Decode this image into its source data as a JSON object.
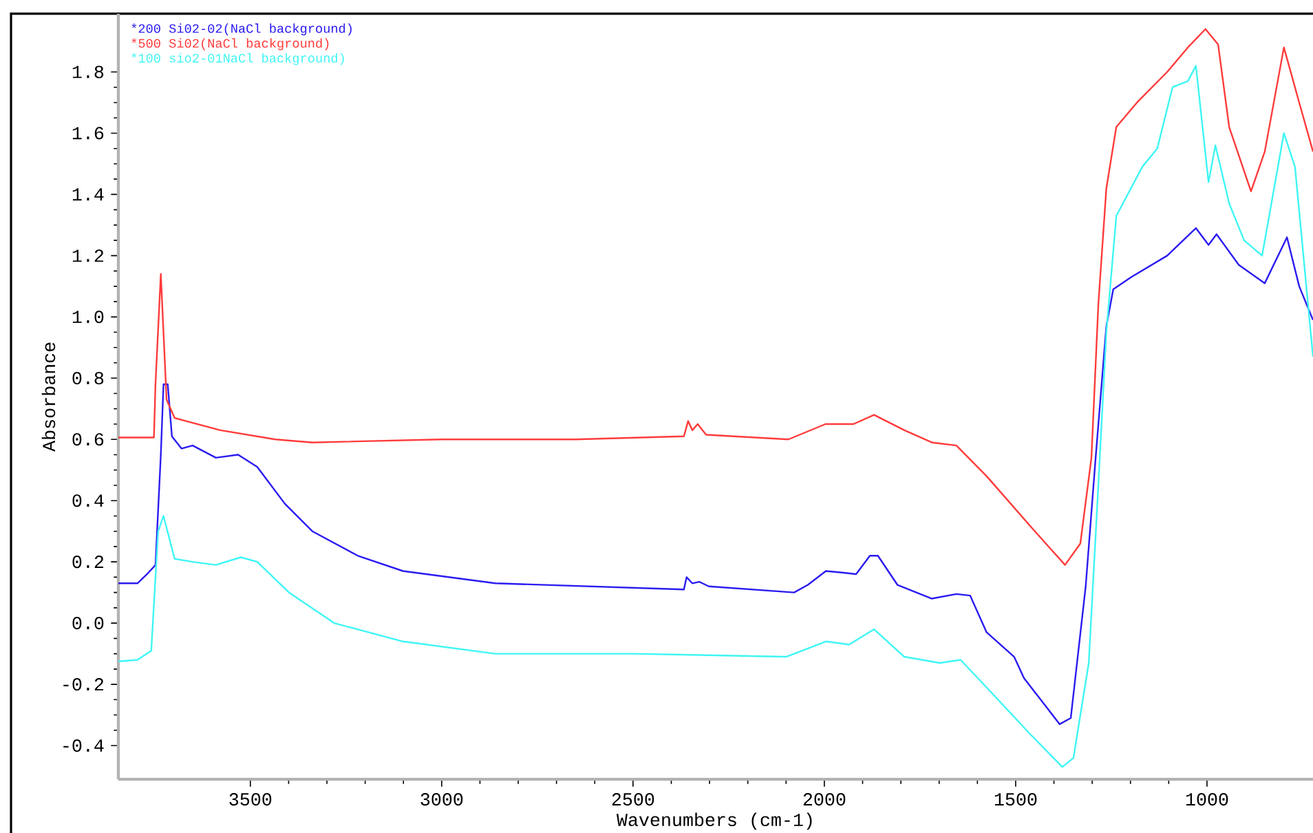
{
  "chart_data": {
    "type": "line",
    "xlabel": "Wavenumbers (cm-1)",
    "ylabel": "Absorbance",
    "xlim": [
      3845,
      723
    ],
    "ylim": [
      -0.51,
      1.99
    ],
    "xticks": [
      3500,
      3000,
      2500,
      2000,
      1500,
      1000
    ],
    "yticks": [
      -0.4,
      -0.2,
      {
        "value": 0,
        "label": "0.0"
      },
      0.2,
      0.4,
      0.6,
      0.8,
      {
        "value": 1,
        "label": "1.0"
      },
      1.2,
      1.4,
      1.6,
      1.8
    ],
    "grid": false,
    "legend": "top left",
    "marker": "none",
    "line_style": "solid",
    "series": [
      {
        "name": "*200 Si02-02(NaCl background)",
        "color": "#2b1bf0",
        "x": [
          3845,
          3795,
          3770,
          3748,
          3734,
          3727,
          3716,
          3705,
          3680,
          3651,
          3590,
          3532,
          3482,
          3410,
          3338,
          3219,
          3101,
          2860,
          2367,
          2360,
          2345,
          2327,
          2302,
          2079,
          2043,
          1996,
          1953,
          1917,
          1881,
          1860,
          1809,
          1719,
          1655,
          1619,
          1576,
          1504,
          1478,
          1385,
          1356,
          1317,
          1291,
          1263,
          1245,
          1198,
          1104,
          1029,
          996,
          975,
          917,
          849,
          791,
          759,
          723
        ],
        "values": [
          0.13,
          0.13,
          0.16,
          0.19,
          0.55,
          0.78,
          0.78,
          0.61,
          0.57,
          0.58,
          0.54,
          0.55,
          0.51,
          0.39,
          0.3,
          0.22,
          0.17,
          0.13,
          0.11,
          0.15,
          0.13,
          0.135,
          0.12,
          0.1,
          0.125,
          0.17,
          0.165,
          0.16,
          0.22,
          0.22,
          0.125,
          0.08,
          0.095,
          0.09,
          -0.03,
          -0.11,
          -0.18,
          -0.33,
          -0.31,
          0.12,
          0.54,
          0.97,
          1.09,
          1.13,
          1.2,
          1.29,
          1.235,
          1.27,
          1.17,
          1.11,
          1.26,
          1.1,
          0.99
        ]
      },
      {
        "name": "*500 Si02(NaCl background)",
        "color": "#ff3b3b",
        "x": [
          3845,
          3752,
          3748,
          3734,
          3719,
          3698,
          3579,
          3435,
          3338,
          3000,
          2650,
          2367,
          2356,
          2345,
          2331,
          2309,
          2094,
          1997,
          1924,
          1870,
          1791,
          1719,
          1655,
          1576,
          1457,
          1371,
          1331,
          1302,
          1284,
          1263,
          1237,
          1183,
          1104,
          1050,
          1004,
          971,
          942,
          885,
          849,
          799,
          759,
          723
        ],
        "values": [
          0.606,
          0.606,
          0.78,
          1.14,
          0.73,
          0.67,
          0.63,
          0.6,
          0.59,
          0.6,
          0.6,
          0.61,
          0.66,
          0.63,
          0.65,
          0.615,
          0.6,
          0.65,
          0.65,
          0.68,
          0.63,
          0.59,
          0.58,
          0.48,
          0.31,
          0.19,
          0.26,
          0.54,
          1.04,
          1.42,
          1.62,
          1.7,
          1.8,
          1.88,
          1.94,
          1.89,
          1.62,
          1.41,
          1.54,
          1.88,
          1.7,
          1.54
        ]
      },
      {
        "name": "*100 sio2-01NaCl background)",
        "color": "#3ff5f5",
        "x": [
          3845,
          3795,
          3759,
          3741,
          3727,
          3698,
          3651,
          3590,
          3525,
          3482,
          3399,
          3281,
          3101,
          2860,
          2500,
          2100,
          1996,
          1935,
          1870,
          1791,
          1698,
          1644,
          1576,
          1464,
          1378,
          1349,
          1309,
          1284,
          1263,
          1237,
          1169,
          1130,
          1090,
          1050,
          1029,
          996,
          978,
          942,
          903,
          856,
          799,
          770,
          723
        ],
        "values": [
          -0.125,
          -0.12,
          -0.09,
          0.3,
          0.35,
          0.21,
          0.2,
          0.19,
          0.215,
          0.2,
          0.1,
          0.0,
          -0.06,
          -0.1,
          -0.1,
          -0.11,
          -0.06,
          -0.07,
          -0.02,
          -0.11,
          -0.13,
          -0.12,
          -0.21,
          -0.36,
          -0.47,
          -0.44,
          -0.13,
          0.45,
          0.95,
          1.33,
          1.49,
          1.55,
          1.75,
          1.77,
          1.82,
          1.44,
          1.56,
          1.37,
          1.25,
          1.2,
          1.6,
          1.49,
          0.87
        ]
      }
    ]
  }
}
